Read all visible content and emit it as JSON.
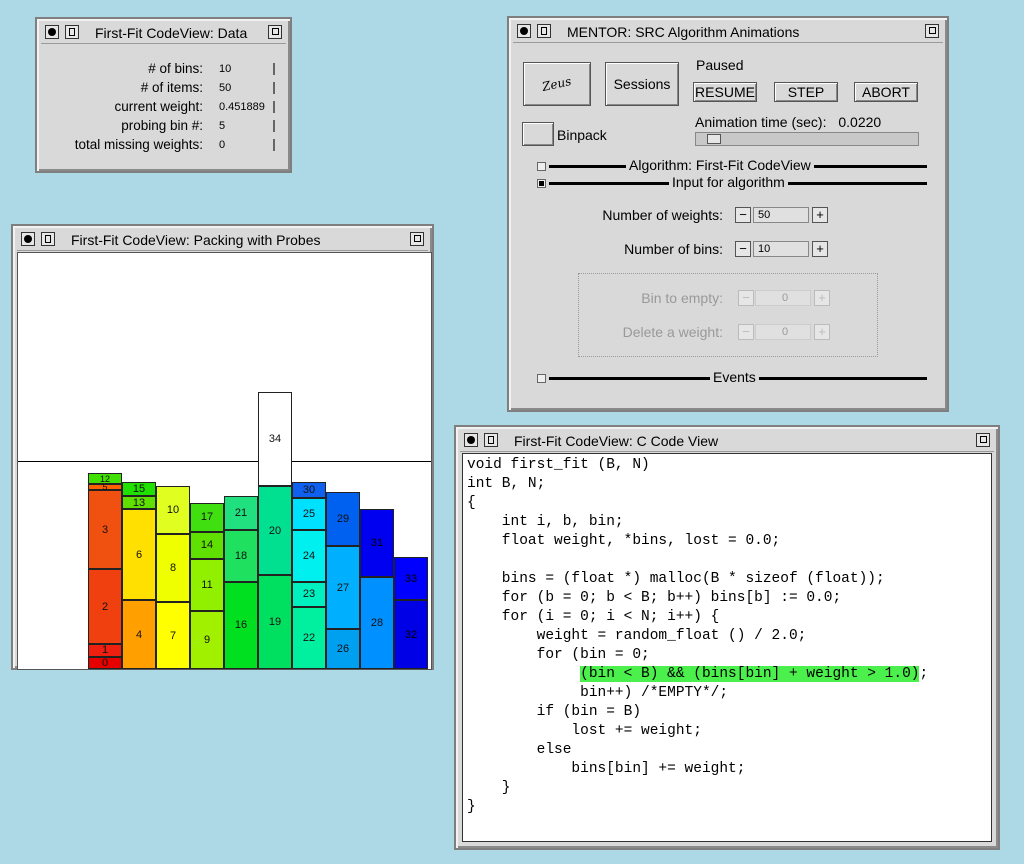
{
  "data_window": {
    "title": "First-Fit CodeView: Data",
    "rows": [
      {
        "label": "# of bins:",
        "value": "10"
      },
      {
        "label": "# of items:",
        "value": "50"
      },
      {
        "label": "current weight:",
        "value": "0.451889"
      },
      {
        "label": "probing bin #:",
        "value": "5"
      },
      {
        "label": "total missing weights:",
        "value": "0"
      }
    ]
  },
  "packing_window": {
    "title": "First-Fit CodeView: Packing with Probes",
    "bins": [
      {
        "items": [
          {
            "id": "0",
            "color": "#e60000",
            "weight": 0.06
          },
          {
            "id": "1",
            "color": "#f02010",
            "weight": 0.06
          },
          {
            "id": "2",
            "color": "#f04010",
            "weight": 0.36
          },
          {
            "id": "3",
            "color": "#f05010",
            "weight": 0.38
          },
          {
            "id": "5",
            "color": "#ff6000",
            "weight": 0.03
          },
          {
            "id": "12",
            "color": "#40e000",
            "weight": 0.05
          }
        ]
      },
      {
        "items": [
          {
            "id": "4",
            "color": "#ffa000",
            "weight": 0.33
          },
          {
            "id": "6",
            "color": "#ffe000",
            "weight": 0.44
          },
          {
            "id": "13",
            "color": "#60e000",
            "weight": 0.06
          },
          {
            "id": "15",
            "color": "#20e000",
            "weight": 0.07
          }
        ]
      },
      {
        "items": [
          {
            "id": "7",
            "color": "#ffff00",
            "weight": 0.32
          },
          {
            "id": "8",
            "color": "#f0ff00",
            "weight": 0.33
          },
          {
            "id": "10",
            "color": "#e0ff20",
            "weight": 0.23
          }
        ]
      },
      {
        "items": [
          {
            "id": "9",
            "color": "#a0f000",
            "weight": 0.28
          },
          {
            "id": "11",
            "color": "#90f000",
            "weight": 0.25
          },
          {
            "id": "14",
            "color": "#60e000",
            "weight": 0.13
          },
          {
            "id": "17",
            "color": "#40e010",
            "weight": 0.14
          }
        ]
      },
      {
        "items": [
          {
            "id": "16",
            "color": "#00e020",
            "weight": 0.42
          },
          {
            "id": "18",
            "color": "#20e060",
            "weight": 0.25
          },
          {
            "id": "21",
            "color": "#20e080",
            "weight": 0.16
          }
        ]
      },
      {
        "items": [
          {
            "id": "19",
            "color": "#00e060",
            "weight": 0.45
          },
          {
            "id": "20",
            "color": "#00e090",
            "weight": 0.43
          },
          {
            "id": "34",
            "color": "#ffffff",
            "weight": 0.45
          }
        ]
      },
      {
        "items": [
          {
            "id": "22",
            "color": "#00f0a0",
            "weight": 0.3
          },
          {
            "id": "23",
            "color": "#00f0c0",
            "weight": 0.12
          },
          {
            "id": "24",
            "color": "#00f0f0",
            "weight": 0.25
          },
          {
            "id": "25",
            "color": "#00e0ff",
            "weight": 0.15
          },
          {
            "id": "30",
            "color": "#1060f0",
            "weight": 0.08
          }
        ]
      },
      {
        "items": [
          {
            "id": "26",
            "color": "#00a0f0",
            "weight": 0.19
          },
          {
            "id": "27",
            "color": "#00b0ff",
            "weight": 0.4
          },
          {
            "id": "29",
            "color": "#0060f0",
            "weight": 0.26
          }
        ]
      },
      {
        "items": [
          {
            "id": "28",
            "color": "#0090ff",
            "weight": 0.44
          },
          {
            "id": "31",
            "color": "#0000f0",
            "weight": 0.33
          }
        ]
      },
      {
        "items": [
          {
            "id": "32",
            "color": "#0000e6",
            "weight": 0.33
          },
          {
            "id": "33",
            "color": "#0000ff",
            "weight": 0.21
          }
        ]
      }
    ]
  },
  "mentor_window": {
    "title": "MENTOR: SRC Algorithm Animations",
    "logo": "Zeus",
    "sessions_label": "Sessions",
    "status": "Paused",
    "resume_label": "RESUME",
    "step_label": "STEP",
    "abort_label": "ABORT",
    "binpack_label": "Binpack",
    "anim_time_label": "Animation time (sec):",
    "anim_time_value": "0.0220",
    "anim_time_level": 0.05,
    "algorithm_label": "Algorithm:  First-Fit CodeView",
    "input_label": "Input for algorithm",
    "num_weights_label": "Number of weights:",
    "num_weights_value": "50",
    "num_bins_label": "Number of bins:",
    "num_bins_value": "10",
    "bin_to_empty_label": "Bin to empty:",
    "bin_to_empty_value": "0",
    "delete_weight_label": "Delete a weight:",
    "delete_weight_value": "0",
    "events_label": "Events"
  },
  "code_window": {
    "title": "First-Fit CodeView: C Code View",
    "lines": [
      "void first_fit (B, N)",
      "int B, N;",
      "{",
      "    int i, b, bin;",
      "    float weight, *bins, lost = 0.0;",
      "",
      "    bins = (float *) malloc(B * sizeof (float));",
      "    for (b = 0; b < B; b++) bins[b] := 0.0;",
      "    for (i = 0; i < N; i++) {",
      "        weight = random_float () / 2.0;",
      "        for (bin = 0;",
      "             (bin < B) && (bins[bin] + weight > 1.0);",
      "             bin++) /*EMPTY*/;",
      "        if (bin = B)",
      "            lost += weight;",
      "        else",
      "            bins[bin] += weight;",
      "    }",
      "}"
    ],
    "highlight_line": 11
  }
}
